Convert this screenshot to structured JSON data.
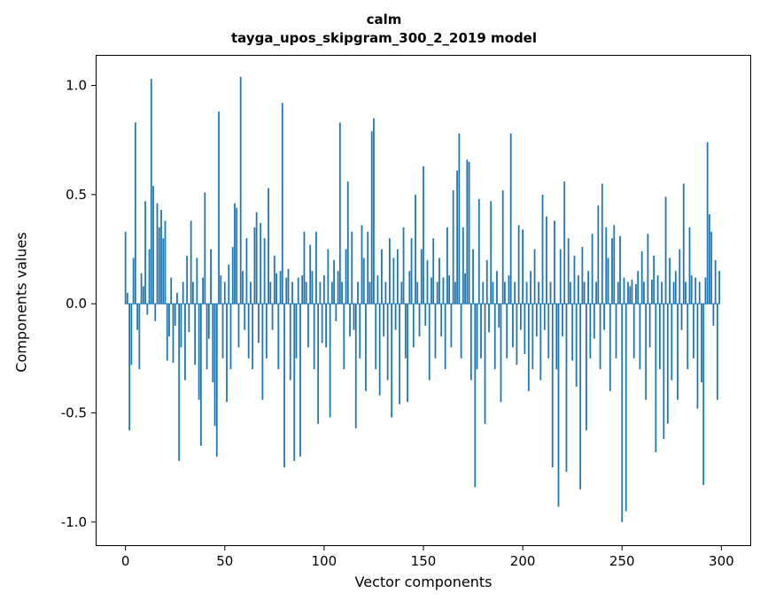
{
  "chart_data": {
    "type": "bar",
    "title": "calm",
    "subtitle": "tayga_upos_skipgram_300_2_2019 model",
    "xlabel": "Vector components",
    "ylabel": "Components values",
    "bar_color": "#1f77b4",
    "xlim": [
      -15,
      315
    ],
    "ylim": [
      -1.11,
      1.14
    ],
    "xticks": [
      0,
      50,
      100,
      150,
      200,
      250,
      300
    ],
    "yticks": [
      -1.0,
      -0.5,
      0.0,
      0.5,
      1.0
    ],
    "x_start": 0,
    "values": [
      0.33,
      0.05,
      -0.58,
      -0.28,
      0.21,
      0.83,
      -0.12,
      -0.3,
      0.14,
      0.08,
      0.47,
      -0.05,
      0.25,
      1.03,
      0.54,
      -0.08,
      0.46,
      0.35,
      0.43,
      0.3,
      0.38,
      -0.26,
      -0.15,
      0.12,
      -0.27,
      -0.1,
      0.05,
      -0.72,
      -0.2,
      0.1,
      -0.35,
      0.22,
      -0.13,
      0.38,
      0.1,
      -0.28,
      0.21,
      -0.44,
      -0.65,
      0.12,
      0.51,
      -0.3,
      -0.16,
      0.25,
      -0.36,
      -0.56,
      -0.7,
      0.88,
      0.13,
      -0.25,
      0.1,
      -0.45,
      0.18,
      -0.3,
      0.26,
      0.46,
      0.44,
      -0.2,
      1.04,
      0.15,
      -0.12,
      0.3,
      -0.25,
      0.1,
      -0.3,
      0.35,
      0.42,
      -0.18,
      0.37,
      -0.44,
      0.3,
      -0.25,
      0.53,
      0.1,
      -0.12,
      0.22,
      0.14,
      -0.3,
      0.15,
      0.92,
      -0.75,
      0.12,
      0.16,
      -0.35,
      0.1,
      -0.72,
      -0.25,
      0.12,
      -0.7,
      0.13,
      0.33,
      0.1,
      -0.2,
      0.27,
      0.15,
      -0.3,
      0.33,
      -0.55,
      0.1,
      -0.18,
      0.13,
      -0.2,
      0.25,
      -0.52,
      0.1,
      0.2,
      -0.08,
      0.15,
      0.83,
      0.1,
      -0.3,
      0.25,
      0.56,
      -0.15,
      0.33,
      -0.12,
      -0.57,
      0.1,
      -0.25,
      0.36,
      0.21,
      -0.4,
      0.33,
      0.1,
      0.79,
      0.85,
      -0.3,
      0.13,
      -0.42,
      0.25,
      -0.15,
      0.1,
      -0.35,
      0.3,
      -0.52,
      0.21,
      -0.12,
      0.25,
      -0.46,
      0.1,
      0.35,
      -0.25,
      -0.45,
      0.15,
      0.3,
      -0.2,
      0.5,
      0.1,
      -0.15,
      0.25,
      0.63,
      -0.1,
      0.2,
      -0.35,
      0.12,
      0.3,
      -0.25,
      0.1,
      0.21,
      -0.15,
      0.12,
      -0.3,
      0.35,
      0.13,
      -0.2,
      0.52,
      0.1,
      0.61,
      0.78,
      -0.25,
      0.35,
      0.14,
      0.66,
      0.65,
      -0.35,
      0.25,
      -0.84,
      -0.3,
      0.48,
      -0.25,
      0.1,
      -0.55,
      0.2,
      -0.13,
      0.47,
      0.1,
      -0.3,
      0.15,
      -0.11,
      -0.45,
      0.52,
      0.1,
      -0.25,
      0.13,
      0.78,
      -0.2,
      0.1,
      -0.28,
      0.36,
      -0.12,
      0.34,
      -0.23,
      0.1,
      -0.4,
      0.15,
      -0.3,
      0.25,
      -0.15,
      0.1,
      -0.35,
      0.5,
      -0.12,
      0.4,
      -0.25,
      0.1,
      -0.75,
      0.38,
      -0.3,
      -0.93,
      0.25,
      -0.15,
      0.56,
      -0.77,
      0.3,
      0.1,
      -0.26,
      0.22,
      -0.38,
      0.13,
      -0.85,
      0.26,
      0.1,
      -0.58,
      0.15,
      -0.25,
      0.32,
      -0.16,
      0.1,
      0.45,
      -0.3,
      0.55,
      -0.12,
      0.35,
      0.21,
      -0.4,
      0.3,
      0.36,
      -0.25,
      0.1,
      0.31,
      -1.0,
      0.12,
      -0.95,
      0.1,
      0.08,
      0.11,
      -0.25,
      0.09,
      0.15,
      -0.3,
      0.24,
      0.1,
      -0.44,
      0.32,
      -0.2,
      0.11,
      0.22,
      -0.68,
      0.13,
      -0.3,
      0.1,
      -0.62,
      0.49,
      -0.55,
      0.21,
      -0.35,
      0.1,
      0.15,
      -0.44,
      0.25,
      -0.12,
      0.55,
      0.1,
      -0.3,
      0.35,
      0.13,
      -0.25,
      0.12,
      -0.48,
      0.1,
      -0.36,
      -0.83,
      0.12,
      0.74,
      0.41,
      0.33,
      -0.1,
      0.2,
      -0.44,
      0.15
    ]
  }
}
